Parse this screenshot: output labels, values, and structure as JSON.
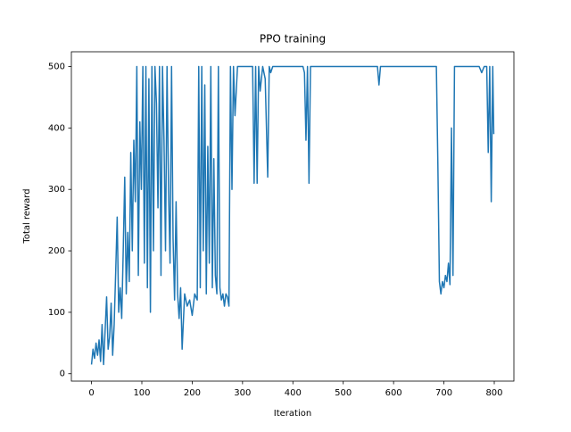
{
  "chart_data": {
    "type": "line",
    "title": "PPO training",
    "x_label": "Iteration",
    "y_label": "Total reward",
    "color": "#1f77b4",
    "grid": false,
    "xlim": [
      -40,
      839
    ],
    "ylim": [
      -12,
      524
    ],
    "xticks": [
      0,
      100,
      200,
      300,
      400,
      500,
      600,
      700,
      800
    ],
    "yticks": [
      0,
      100,
      200,
      300,
      400,
      500
    ],
    "x": [
      0,
      3,
      6,
      9,
      12,
      15,
      18,
      21,
      24,
      27,
      30,
      33,
      36,
      39,
      42,
      45,
      48,
      51,
      54,
      57,
      60,
      63,
      66,
      69,
      72,
      75,
      78,
      81,
      84,
      87,
      90,
      93,
      96,
      99,
      102,
      105,
      108,
      111,
      114,
      117,
      120,
      123,
      126,
      129,
      132,
      135,
      138,
      141,
      144,
      147,
      150,
      153,
      156,
      159,
      162,
      165,
      168,
      171,
      174,
      177,
      180,
      185,
      190,
      195,
      200,
      205,
      210,
      213,
      216,
      219,
      222,
      225,
      228,
      231,
      234,
      237,
      240,
      243,
      246,
      249,
      252,
      255,
      258,
      261,
      264,
      267,
      270,
      273,
      276,
      279,
      282,
      285,
      290,
      300,
      310,
      320,
      323,
      326,
      329,
      332,
      335,
      340,
      345,
      350,
      353,
      356,
      360,
      380,
      400,
      420,
      423,
      426,
      429,
      432,
      435,
      440,
      480,
      520,
      560,
      568,
      571,
      574,
      600,
      650,
      685,
      688,
      691,
      694,
      697,
      700,
      703,
      706,
      709,
      712,
      715,
      718,
      721,
      724,
      730,
      760,
      770,
      775,
      780,
      785,
      788,
      791,
      794,
      797,
      799
    ],
    "values": [
      15,
      40,
      25,
      50,
      30,
      55,
      20,
      80,
      15,
      70,
      125,
      40,
      60,
      115,
      30,
      80,
      165,
      255,
      100,
      140,
      90,
      200,
      320,
      130,
      230,
      150,
      360,
      200,
      380,
      280,
      500,
      160,
      410,
      300,
      500,
      180,
      500,
      140,
      480,
      100,
      500,
      200,
      500,
      440,
      270,
      500,
      160,
      500,
      380,
      200,
      500,
      300,
      180,
      500,
      220,
      120,
      280,
      130,
      90,
      140,
      40,
      130,
      110,
      120,
      95,
      130,
      120,
      500,
      140,
      500,
      200,
      470,
      130,
      370,
      180,
      500,
      140,
      350,
      160,
      130,
      500,
      140,
      120,
      130,
      110,
      130,
      125,
      110,
      500,
      300,
      500,
      420,
      500,
      500,
      500,
      500,
      310,
      500,
      310,
      500,
      460,
      500,
      480,
      320,
      500,
      490,
      500,
      500,
      500,
      500,
      490,
      380,
      500,
      310,
      500,
      500,
      500,
      500,
      500,
      500,
      470,
      500,
      500,
      500,
      500,
      340,
      150,
      130,
      150,
      140,
      160,
      150,
      180,
      145,
      400,
      160,
      500,
      500,
      500,
      500,
      500,
      490,
      500,
      500,
      360,
      500,
      280,
      500,
      390
    ]
  }
}
